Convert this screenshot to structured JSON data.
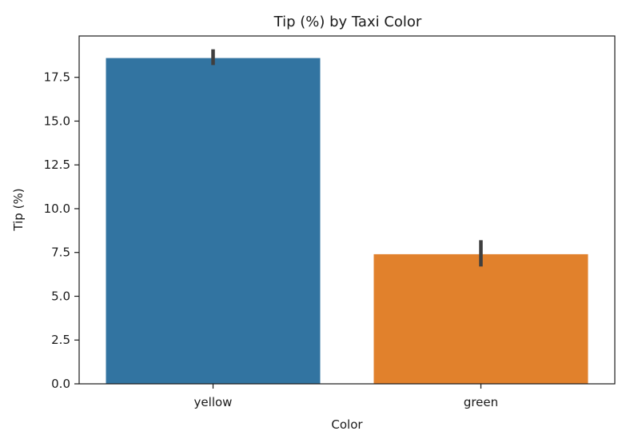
{
  "chart_data": {
    "type": "bar",
    "title": "Tip (%) by Taxi Color",
    "xlabel": "Color",
    "ylabel": "Tip (%)",
    "categories": [
      "yellow",
      "green"
    ],
    "values": [
      18.6,
      7.4
    ],
    "error_low": [
      18.2,
      6.7
    ],
    "error_high": [
      19.1,
      8.2
    ],
    "colors": [
      "#3274a1",
      "#e1812c"
    ],
    "error_color": "#3f3f3f",
    "ylim": [
      0,
      19.86
    ],
    "yticks": [
      0.0,
      2.5,
      5.0,
      7.5,
      10.0,
      12.5,
      15.0,
      17.5
    ],
    "ytick_labels": [
      "0.0",
      "2.5",
      "5.0",
      "7.5",
      "10.0",
      "12.5",
      "15.0",
      "17.5"
    ],
    "grid": false,
    "legend": false
  }
}
